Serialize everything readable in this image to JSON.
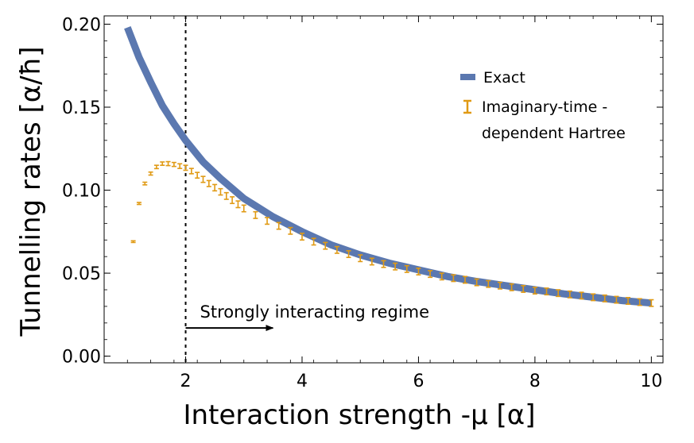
{
  "chart_data": {
    "type": "line",
    "xlabel": "Interaction strength -μ [α]",
    "ylabel": "Tunnelling rates [α/ħ]",
    "xlim": [
      0.6,
      10.2
    ],
    "ylim": [
      -0.004,
      0.205
    ],
    "x_ticks": [
      2,
      4,
      6,
      8,
      10
    ],
    "x_tick_labels": [
      "2",
      "4",
      "6",
      "8",
      "10"
    ],
    "y_ticks": [
      0.0,
      0.05,
      0.1,
      0.15,
      0.2
    ],
    "y_tick_labels": [
      "0.00",
      "0.05",
      "0.10",
      "0.15",
      "0.20"
    ],
    "grid": false,
    "legend_position": "top-right",
    "colors": {
      "exact": "#5b78b0",
      "hartree": "#e09a14"
    },
    "series": [
      {
        "name": "Exact",
        "kind": "line",
        "x": [
          1.0,
          1.2,
          1.4,
          1.6,
          1.8,
          2.0,
          2.3,
          2.6,
          3.0,
          3.5,
          4.0,
          4.5,
          5.0,
          5.5,
          6.0,
          6.5,
          7.0,
          7.5,
          8.0,
          8.5,
          9.0,
          9.5,
          10.0
        ],
        "values": [
          0.198,
          0.18,
          0.165,
          0.151,
          0.14,
          0.13,
          0.117,
          0.107,
          0.095,
          0.084,
          0.075,
          0.067,
          0.061,
          0.056,
          0.052,
          0.048,
          0.045,
          0.0425,
          0.04,
          0.0375,
          0.0355,
          0.0335,
          0.032
        ]
      },
      {
        "name": "Imaginary-time -dependent Hartree",
        "kind": "errorbar",
        "x": [
          1.1,
          1.2,
          1.3,
          1.4,
          1.5,
          1.6,
          1.7,
          1.8,
          1.9,
          2.0,
          2.1,
          2.2,
          2.3,
          2.4,
          2.5,
          2.6,
          2.7,
          2.8,
          2.9,
          3.0,
          3.2,
          3.4,
          3.6,
          3.8,
          4.0,
          4.2,
          4.4,
          4.6,
          4.8,
          5.0,
          5.2,
          5.4,
          5.6,
          5.8,
          6.0,
          6.2,
          6.4,
          6.6,
          6.8,
          7.0,
          7.2,
          7.4,
          7.6,
          7.8,
          8.0,
          8.2,
          8.4,
          8.6,
          8.8,
          9.0,
          9.2,
          9.4,
          9.6,
          9.8,
          10.0
        ],
        "values": [
          0.069,
          0.092,
          0.104,
          0.11,
          0.114,
          0.116,
          0.116,
          0.1155,
          0.1145,
          0.1135,
          0.1115,
          0.109,
          0.1065,
          0.104,
          0.1015,
          0.099,
          0.0965,
          0.094,
          0.0915,
          0.089,
          0.085,
          0.0815,
          0.0785,
          0.0755,
          0.072,
          0.069,
          0.0665,
          0.064,
          0.0615,
          0.059,
          0.057,
          0.0555,
          0.054,
          0.0525,
          0.051,
          0.0495,
          0.048,
          0.047,
          0.046,
          0.0445,
          0.0435,
          0.0425,
          0.0415,
          0.0405,
          0.0395,
          0.039,
          0.038,
          0.0372,
          0.0365,
          0.0355,
          0.0348,
          0.034,
          0.0333,
          0.0326,
          0.032
        ],
        "errors": [
          0.0005,
          0.0006,
          0.0008,
          0.0009,
          0.001,
          0.001,
          0.0012,
          0.0012,
          0.0014,
          0.0015,
          0.0016,
          0.0017,
          0.0018,
          0.0018,
          0.0019,
          0.0019,
          0.002,
          0.002,
          0.002,
          0.002,
          0.002,
          0.002,
          0.002,
          0.002,
          0.002,
          0.002,
          0.002,
          0.002,
          0.002,
          0.002,
          0.002,
          0.002,
          0.002,
          0.002,
          0.002,
          0.002,
          0.002,
          0.002,
          0.002,
          0.002,
          0.002,
          0.002,
          0.002,
          0.002,
          0.002,
          0.002,
          0.002,
          0.002,
          0.002,
          0.002,
          0.002,
          0.002,
          0.002,
          0.002,
          0.002
        ]
      }
    ],
    "legend": [
      "Exact",
      "Imaginary-time -",
      "dependent Hartree"
    ],
    "annotations": [
      {
        "type": "vline",
        "x": 2.0,
        "style": "dotted"
      },
      {
        "type": "arrow",
        "text": "Strongly interacting regime",
        "x_from": 2.0,
        "x_to": 3.5,
        "y": 0.017
      }
    ]
  }
}
